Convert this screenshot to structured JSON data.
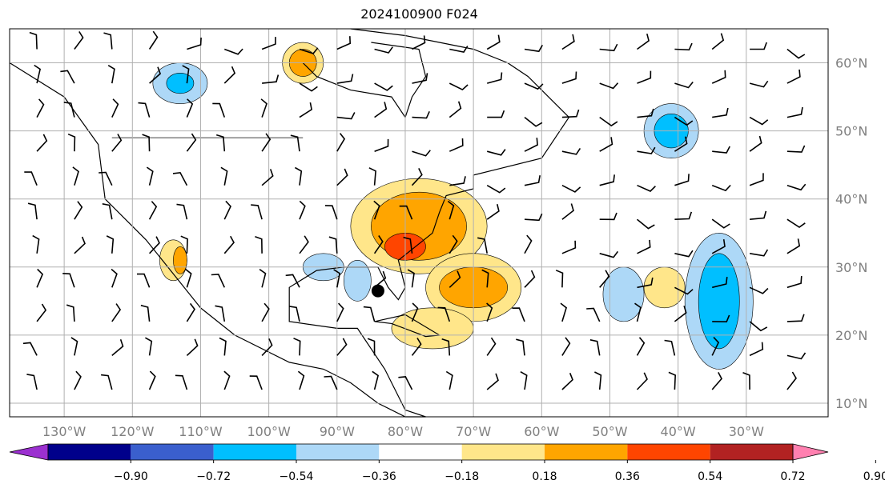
{
  "title": "2024100900 F024",
  "map": {
    "lon_labels": [
      "130°W",
      "120°W",
      "110°W",
      "100°W",
      "90°W",
      "80°W",
      "70°W",
      "60°W",
      "50°W",
      "40°W",
      "30°W"
    ],
    "lat_labels": [
      "60°N",
      "50°N",
      "40°N",
      "30°N",
      "20°N",
      "10°N"
    ],
    "lons": [
      -130,
      -120,
      -110,
      -100,
      -90,
      -80,
      -70,
      -60,
      -50,
      -40,
      -30
    ],
    "lats": [
      60,
      50,
      40,
      30,
      20,
      10
    ],
    "extent": {
      "lon_min": -138,
      "lon_max": -18,
      "lat_min": 8,
      "lat_max": 65
    },
    "marker": {
      "lon": -84,
      "lat": 26.5
    },
    "colors": {
      "grid": "#b0b0b0",
      "label": "#808080",
      "coast": "#000000"
    }
  },
  "colorbar": {
    "ticks": [
      "−0.90",
      "−0.72",
      "−0.54",
      "−0.36",
      "−0.18",
      "0.18",
      "0.36",
      "0.54",
      "0.72",
      "0.90"
    ],
    "colors": [
      "#9b30d0",
      "#00008b",
      "#3a5fcd",
      "#00bfff",
      "#add8f7",
      "#ffffff",
      "#ffe68a",
      "#ffa500",
      "#ff4500",
      "#b22222",
      "#ff80b0"
    ]
  }
}
